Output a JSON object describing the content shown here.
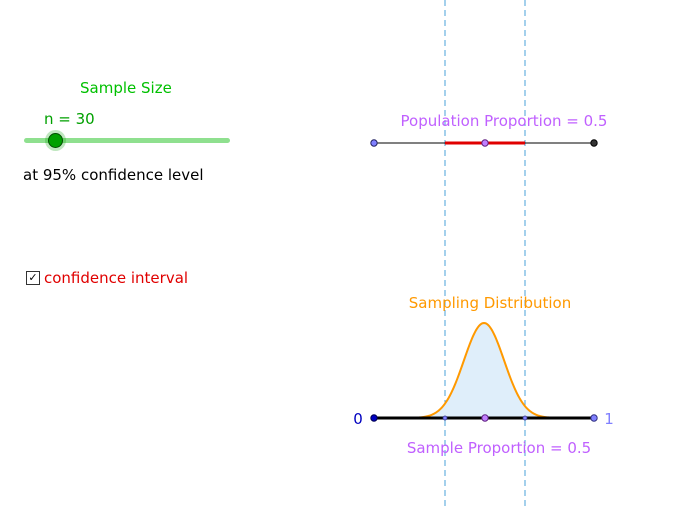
{
  "slider": {
    "title": "Sample Size",
    "value_label": "n = 30",
    "value": 30
  },
  "confidence_text": "at 95% confidence level",
  "checkbox": {
    "label": "confidence interval",
    "checked": true
  },
  "population": {
    "label": "Population Proportion = 0.5",
    "proportion": 0.5
  },
  "sampling": {
    "title": "Sampling Distribution",
    "sample_label": "Sample Proportion = 0.5",
    "axis_min_label": "0",
    "axis_max_label": "1",
    "proportion": 0.5
  },
  "colors": {
    "green": "#00a000",
    "red": "#e00000",
    "violet": "#c060ff",
    "orange": "#ff9900",
    "blue": "#0000c0",
    "dashed": "#4aa0d8",
    "fill": "#dfeefa"
  }
}
